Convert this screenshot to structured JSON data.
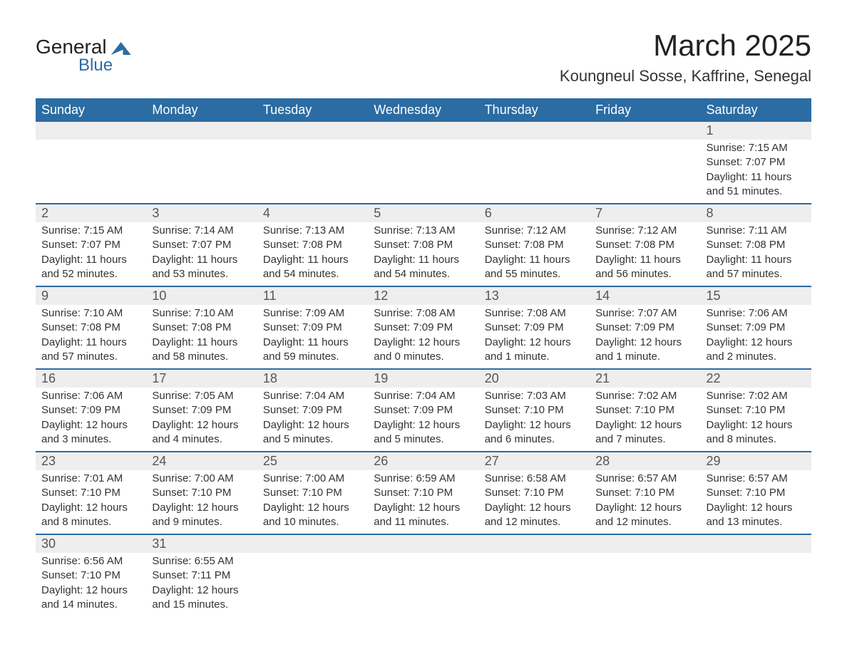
{
  "logo": {
    "text_general": "General",
    "text_blue": "Blue"
  },
  "title": "March 2025",
  "location": "Koungneul Sosse, Kaffrine, Senegal",
  "colors": {
    "header_bg": "#2b6ca3",
    "header_text": "#ffffff",
    "daynum_bg": "#eeeeee",
    "row_border": "#2b6ca3",
    "body_text": "#333333",
    "page_bg": "#ffffff",
    "logo_accent": "#2b6ca3"
  },
  "typography": {
    "title_fontsize": 42,
    "location_fontsize": 22,
    "weekday_fontsize": 18,
    "daynum_fontsize": 18,
    "body_fontsize": 15,
    "font_family": "Arial"
  },
  "weekdays": [
    "Sunday",
    "Monday",
    "Tuesday",
    "Wednesday",
    "Thursday",
    "Friday",
    "Saturday"
  ],
  "weeks": [
    [
      null,
      null,
      null,
      null,
      null,
      null,
      {
        "n": "1",
        "sr": "Sunrise: 7:15 AM",
        "ss": "Sunset: 7:07 PM",
        "dl": "Daylight: 11 hours and 51 minutes."
      }
    ],
    [
      {
        "n": "2",
        "sr": "Sunrise: 7:15 AM",
        "ss": "Sunset: 7:07 PM",
        "dl": "Daylight: 11 hours and 52 minutes."
      },
      {
        "n": "3",
        "sr": "Sunrise: 7:14 AM",
        "ss": "Sunset: 7:07 PM",
        "dl": "Daylight: 11 hours and 53 minutes."
      },
      {
        "n": "4",
        "sr": "Sunrise: 7:13 AM",
        "ss": "Sunset: 7:08 PM",
        "dl": "Daylight: 11 hours and 54 minutes."
      },
      {
        "n": "5",
        "sr": "Sunrise: 7:13 AM",
        "ss": "Sunset: 7:08 PM",
        "dl": "Daylight: 11 hours and 54 minutes."
      },
      {
        "n": "6",
        "sr": "Sunrise: 7:12 AM",
        "ss": "Sunset: 7:08 PM",
        "dl": "Daylight: 11 hours and 55 minutes."
      },
      {
        "n": "7",
        "sr": "Sunrise: 7:12 AM",
        "ss": "Sunset: 7:08 PM",
        "dl": "Daylight: 11 hours and 56 minutes."
      },
      {
        "n": "8",
        "sr": "Sunrise: 7:11 AM",
        "ss": "Sunset: 7:08 PM",
        "dl": "Daylight: 11 hours and 57 minutes."
      }
    ],
    [
      {
        "n": "9",
        "sr": "Sunrise: 7:10 AM",
        "ss": "Sunset: 7:08 PM",
        "dl": "Daylight: 11 hours and 57 minutes."
      },
      {
        "n": "10",
        "sr": "Sunrise: 7:10 AM",
        "ss": "Sunset: 7:08 PM",
        "dl": "Daylight: 11 hours and 58 minutes."
      },
      {
        "n": "11",
        "sr": "Sunrise: 7:09 AM",
        "ss": "Sunset: 7:09 PM",
        "dl": "Daylight: 11 hours and 59 minutes."
      },
      {
        "n": "12",
        "sr": "Sunrise: 7:08 AM",
        "ss": "Sunset: 7:09 PM",
        "dl": "Daylight: 12 hours and 0 minutes."
      },
      {
        "n": "13",
        "sr": "Sunrise: 7:08 AM",
        "ss": "Sunset: 7:09 PM",
        "dl": "Daylight: 12 hours and 1 minute."
      },
      {
        "n": "14",
        "sr": "Sunrise: 7:07 AM",
        "ss": "Sunset: 7:09 PM",
        "dl": "Daylight: 12 hours and 1 minute."
      },
      {
        "n": "15",
        "sr": "Sunrise: 7:06 AM",
        "ss": "Sunset: 7:09 PM",
        "dl": "Daylight: 12 hours and 2 minutes."
      }
    ],
    [
      {
        "n": "16",
        "sr": "Sunrise: 7:06 AM",
        "ss": "Sunset: 7:09 PM",
        "dl": "Daylight: 12 hours and 3 minutes."
      },
      {
        "n": "17",
        "sr": "Sunrise: 7:05 AM",
        "ss": "Sunset: 7:09 PM",
        "dl": "Daylight: 12 hours and 4 minutes."
      },
      {
        "n": "18",
        "sr": "Sunrise: 7:04 AM",
        "ss": "Sunset: 7:09 PM",
        "dl": "Daylight: 12 hours and 5 minutes."
      },
      {
        "n": "19",
        "sr": "Sunrise: 7:04 AM",
        "ss": "Sunset: 7:09 PM",
        "dl": "Daylight: 12 hours and 5 minutes."
      },
      {
        "n": "20",
        "sr": "Sunrise: 7:03 AM",
        "ss": "Sunset: 7:10 PM",
        "dl": "Daylight: 12 hours and 6 minutes."
      },
      {
        "n": "21",
        "sr": "Sunrise: 7:02 AM",
        "ss": "Sunset: 7:10 PM",
        "dl": "Daylight: 12 hours and 7 minutes."
      },
      {
        "n": "22",
        "sr": "Sunrise: 7:02 AM",
        "ss": "Sunset: 7:10 PM",
        "dl": "Daylight: 12 hours and 8 minutes."
      }
    ],
    [
      {
        "n": "23",
        "sr": "Sunrise: 7:01 AM",
        "ss": "Sunset: 7:10 PM",
        "dl": "Daylight: 12 hours and 8 minutes."
      },
      {
        "n": "24",
        "sr": "Sunrise: 7:00 AM",
        "ss": "Sunset: 7:10 PM",
        "dl": "Daylight: 12 hours and 9 minutes."
      },
      {
        "n": "25",
        "sr": "Sunrise: 7:00 AM",
        "ss": "Sunset: 7:10 PM",
        "dl": "Daylight: 12 hours and 10 minutes."
      },
      {
        "n": "26",
        "sr": "Sunrise: 6:59 AM",
        "ss": "Sunset: 7:10 PM",
        "dl": "Daylight: 12 hours and 11 minutes."
      },
      {
        "n": "27",
        "sr": "Sunrise: 6:58 AM",
        "ss": "Sunset: 7:10 PM",
        "dl": "Daylight: 12 hours and 12 minutes."
      },
      {
        "n": "28",
        "sr": "Sunrise: 6:57 AM",
        "ss": "Sunset: 7:10 PM",
        "dl": "Daylight: 12 hours and 12 minutes."
      },
      {
        "n": "29",
        "sr": "Sunrise: 6:57 AM",
        "ss": "Sunset: 7:10 PM",
        "dl": "Daylight: 12 hours and 13 minutes."
      }
    ],
    [
      {
        "n": "30",
        "sr": "Sunrise: 6:56 AM",
        "ss": "Sunset: 7:10 PM",
        "dl": "Daylight: 12 hours and 14 minutes."
      },
      {
        "n": "31",
        "sr": "Sunrise: 6:55 AM",
        "ss": "Sunset: 7:11 PM",
        "dl": "Daylight: 12 hours and 15 minutes."
      },
      null,
      null,
      null,
      null,
      null
    ]
  ]
}
